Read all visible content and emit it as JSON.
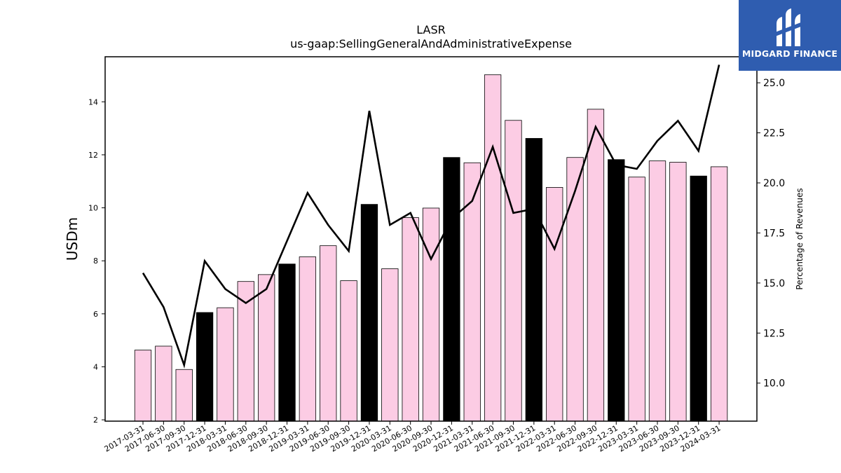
{
  "brand": {
    "name": "MIDGARD FINANCE",
    "bg_color": "#2f5db0"
  },
  "chart_data": {
    "type": "bar",
    "title": "LASR",
    "subtitle": "us-gaap:SellingGeneralAndAdministrativeExpense",
    "ylabel": "USDm",
    "y2label": "Percentage of Revenues",
    "ylim": [
      1.95,
      15.7
    ],
    "y2lim": [
      8.1,
      26.3
    ],
    "yticks": [
      2,
      4,
      6,
      8,
      10,
      12,
      14
    ],
    "y2ticks": [
      10.0,
      12.5,
      15.0,
      17.5,
      20.0,
      22.5,
      25.0
    ],
    "y2tick_labels": [
      "10.0",
      "12.5",
      "15.0",
      "17.5",
      "20.0",
      "22.5",
      "25.0"
    ],
    "colors": {
      "quarter_bar": "#fccce4",
      "year_end_bar": "#000000",
      "line": "#000000"
    },
    "categories": [
      "2017-03-31",
      "2017-06-30",
      "2017-09-30",
      "2017-12-31",
      "2018-03-31",
      "2018-06-30",
      "2018-09-30",
      "2018-12-31",
      "2019-03-31",
      "2019-06-30",
      "2019-09-30",
      "2019-12-31",
      "2020-03-31",
      "2020-06-30",
      "2020-09-30",
      "2020-12-31",
      "2021-03-31",
      "2021-06-30",
      "2021-09-30",
      "2021-12-31",
      "2022-03-31",
      "2022-06-30",
      "2022-09-30",
      "2022-12-31",
      "2023-03-31",
      "2023-06-30",
      "2023-09-30",
      "2023-12-31",
      "2024-03-31"
    ],
    "series": [
      {
        "axis": "left",
        "kind": "bar",
        "values": [
          4.63,
          4.78,
          3.9,
          6.05,
          6.23,
          7.22,
          7.48,
          7.88,
          8.15,
          8.57,
          7.25,
          10.13,
          7.7,
          9.63,
          9.99,
          11.9,
          11.7,
          15.02,
          13.3,
          12.62,
          10.77,
          11.9,
          13.72,
          11.82,
          11.16,
          11.77,
          11.72,
          11.2,
          11.55
        ],
        "year_end": [
          false,
          false,
          false,
          true,
          false,
          false,
          false,
          true,
          false,
          false,
          false,
          true,
          false,
          false,
          false,
          true,
          false,
          false,
          false,
          true,
          false,
          false,
          false,
          true,
          false,
          false,
          false,
          true,
          false
        ]
      },
      {
        "axis": "right",
        "kind": "line",
        "values": [
          15.5,
          13.8,
          10.9,
          16.1,
          14.7,
          14.0,
          14.7,
          17.1,
          19.5,
          17.9,
          16.6,
          23.6,
          17.9,
          18.5,
          16.2,
          18.2,
          19.1,
          21.8,
          18.5,
          18.7,
          16.7,
          19.6,
          22.8,
          20.9,
          20.7,
          22.1,
          23.1,
          21.6,
          25.9
        ]
      }
    ]
  }
}
